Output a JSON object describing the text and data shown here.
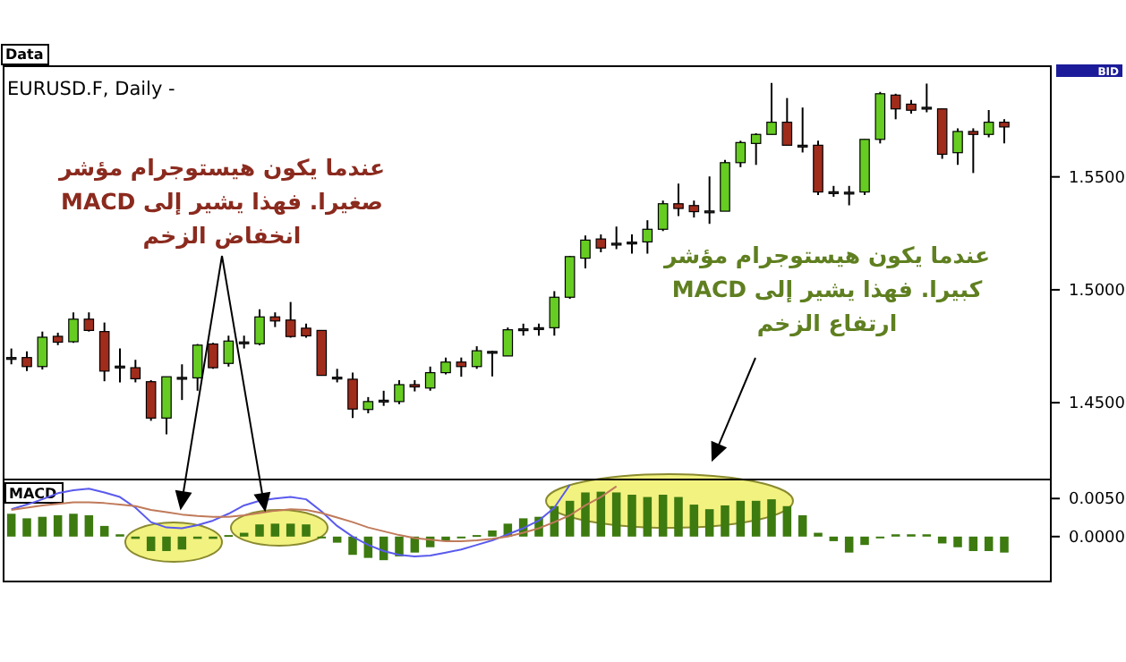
{
  "chart_data": [
    {
      "type": "candlestick",
      "title": "EURUSD.F, Daily -",
      "annotations": [
        "Data",
        "BID",
        "عندما يكون هيستوجرام مؤشر\nMACD صغيرا. فهذا يشير إلى\nانخفاض الزخم",
        "عندما يكون هيستوجرام مؤشر\nMACD كبيرا. فهذا يشير إلى\nارتفاع الزخم"
      ],
      "categories": [
        null,
        null,
        null,
        null,
        null,
        null,
        null,
        null,
        null,
        null,
        null,
        null,
        null,
        null,
        null,
        null,
        null,
        null,
        null,
        null,
        null,
        null,
        null,
        null,
        null,
        null,
        null,
        null,
        null,
        null,
        null,
        null,
        null,
        null,
        null,
        null,
        null,
        null,
        null,
        null,
        null,
        null,
        null,
        null,
        null,
        null,
        null,
        null,
        null,
        null,
        null,
        null,
        null,
        null,
        null,
        null,
        null,
        null,
        null,
        null,
        null,
        null,
        null,
        null,
        null
      ],
      "ohlc": [
        [
          1.47,
          1.474,
          1.467,
          1.47
        ],
        [
          1.47,
          1.4727,
          1.464,
          1.466
        ],
        [
          1.466,
          1.4815,
          1.4647,
          1.479
        ],
        [
          1.4794,
          1.481,
          1.4755,
          1.4768
        ],
        [
          1.477,
          1.49,
          1.4765,
          1.487
        ],
        [
          1.487,
          1.49,
          1.4815,
          1.482
        ],
        [
          1.4815,
          1.4855,
          1.4595,
          1.464
        ],
        [
          1.4662,
          1.474,
          1.459,
          1.4662
        ],
        [
          1.4655,
          1.469,
          1.459,
          1.4606
        ],
        [
          1.4593,
          1.46,
          1.442,
          1.4432
        ],
        [
          1.4432,
          1.4615,
          1.436,
          1.4615
        ],
        [
          1.4612,
          1.467,
          1.4512,
          1.4612
        ],
        [
          1.461,
          1.476,
          1.4553,
          1.4755
        ],
        [
          1.476,
          1.4765,
          1.465,
          1.4655
        ],
        [
          1.4674,
          1.4797,
          1.466,
          1.4773
        ],
        [
          1.4769,
          1.4797,
          1.474,
          1.4769
        ],
        [
          1.4761,
          1.4914,
          1.4754,
          1.488
        ],
        [
          1.488,
          1.49,
          1.4835,
          1.4862
        ],
        [
          1.4866,
          1.4946,
          1.4788,
          1.4793
        ],
        [
          1.483,
          1.485,
          1.4788,
          1.4796
        ],
        [
          1.482,
          1.482,
          1.462,
          1.4621
        ],
        [
          1.4613,
          1.465,
          1.459,
          1.4613
        ],
        [
          1.4604,
          1.4633,
          1.4432,
          1.4472
        ],
        [
          1.447,
          1.4525,
          1.4453,
          1.4505
        ],
        [
          1.4511,
          1.4553,
          1.4486,
          1.4511
        ],
        [
          1.4505,
          1.46,
          1.4494,
          1.458
        ],
        [
          1.458,
          1.46,
          1.455,
          1.457
        ],
        [
          1.4565,
          1.466,
          1.4553,
          1.4633
        ],
        [
          1.4633,
          1.47,
          1.4625,
          1.468
        ],
        [
          1.468,
          1.47,
          1.4615,
          1.466
        ],
        [
          1.466,
          1.475,
          1.465,
          1.473
        ],
        [
          1.4727,
          1.473,
          1.4617,
          1.4727
        ],
        [
          1.4707,
          1.4833,
          1.4707,
          1.4823
        ],
        [
          1.4827,
          1.485,
          1.4797,
          1.4827
        ],
        [
          1.4832,
          1.485,
          1.4797,
          1.4832
        ],
        [
          1.4832,
          1.4994,
          1.4797,
          1.4967
        ],
        [
          1.4967,
          1.515,
          1.496,
          1.5147
        ],
        [
          1.514,
          1.524,
          1.5095,
          1.522
        ],
        [
          1.5225,
          1.5245,
          1.5166,
          1.5185
        ],
        [
          1.5206,
          1.528,
          1.518,
          1.5206
        ],
        [
          1.5211,
          1.5245,
          1.516,
          1.5211
        ],
        [
          1.5212,
          1.5308,
          1.516,
          1.5268
        ],
        [
          1.5268,
          1.5395,
          1.526,
          1.5381
        ],
        [
          1.5381,
          1.547,
          1.5327,
          1.536
        ],
        [
          1.5373,
          1.5395,
          1.532,
          1.5346
        ],
        [
          1.5349,
          1.5502,
          1.5292,
          1.5349
        ],
        [
          1.5348,
          1.5575,
          1.5348,
          1.5563
        ],
        [
          1.5563,
          1.566,
          1.5543,
          1.5652
        ],
        [
          1.5648,
          1.5693,
          1.5553,
          1.5688
        ],
        [
          1.5688,
          1.5916,
          1.5688,
          1.5742
        ],
        [
          1.5742,
          1.5849,
          1.564,
          1.564
        ],
        [
          1.564,
          1.5807,
          1.5608,
          1.564
        ],
        [
          1.564,
          1.566,
          1.542,
          1.5433
        ],
        [
          1.5434,
          1.546,
          1.5412,
          1.5434
        ],
        [
          1.5432,
          1.546,
          1.5374,
          1.5432
        ],
        [
          1.5433,
          1.5666,
          1.542,
          1.5666
        ],
        [
          1.5666,
          1.5876,
          1.5648,
          1.5868
        ],
        [
          1.5862,
          1.5868,
          1.5755,
          1.5801
        ],
        [
          1.5822,
          1.584,
          1.578,
          1.5795
        ],
        [
          1.5808,
          1.5913,
          1.5786,
          1.5808
        ],
        [
          1.5801,
          1.5801,
          1.558,
          1.56
        ],
        [
          1.5607,
          1.5715,
          1.5553,
          1.5701
        ],
        [
          1.5701,
          1.5715,
          1.5517,
          1.5688
        ],
        [
          1.5688,
          1.5796,
          1.5675,
          1.5742
        ],
        [
          1.5742,
          1.5755,
          1.5648,
          1.5721
        ]
      ],
      "colors": [
        "#333333",
        "#a02c1c",
        "#66cc22",
        "#a02c1c",
        "#66cc22",
        "#a02c1c",
        "#a02c1c",
        "#333333",
        "#a02c1c",
        "#a02c1c",
        "#66cc22",
        "#333333",
        "#66cc22",
        "#a02c1c",
        "#66cc22",
        "#333333",
        "#66cc22",
        "#a02c1c",
        "#a02c1c",
        "#a02c1c",
        "#a02c1c",
        "#333333",
        "#a02c1c",
        "#66cc22",
        "#333333",
        "#66cc22",
        "#a02c1c",
        "#66cc22",
        "#66cc22",
        "#a02c1c",
        "#66cc22",
        "#333333",
        "#66cc22",
        "#333333",
        "#333333",
        "#66cc22",
        "#66cc22",
        "#66cc22",
        "#a02c1c",
        "#333333",
        "#333333",
        "#66cc22",
        "#66cc22",
        "#a02c1c",
        "#a02c1c",
        "#333333",
        "#66cc22",
        "#66cc22",
        "#66cc22",
        "#66cc22",
        "#a02c1c",
        "#333333",
        "#a02c1c",
        "#333333",
        "#333333",
        "#66cc22",
        "#66cc22",
        "#a02c1c",
        "#a02c1c",
        "#333333",
        "#a02c1c",
        "#66cc22",
        "#a02c1c",
        "#66cc22",
        "#a02c1c"
      ],
      "ylim": [
        1.416,
        1.599
      ],
      "yticks": [
        {
          "value": 1.45,
          "label": "1.4500"
        },
        {
          "value": 1.5,
          "label": "1.5000"
        },
        {
          "value": 1.55,
          "label": "1.5500"
        }
      ],
      "grid": false
    },
    {
      "type": "bar",
      "title": "MACD",
      "categories": [
        null,
        null,
        null,
        null,
        null,
        null,
        null,
        null,
        null,
        null,
        null,
        null,
        null,
        null,
        null,
        null,
        null,
        null,
        null,
        null,
        null,
        null,
        null,
        null,
        null,
        null,
        null,
        null,
        null,
        null,
        null,
        null,
        null,
        null,
        null,
        null,
        null,
        null,
        null,
        null,
        null,
        null,
        null,
        null,
        null,
        null,
        null,
        null,
        null,
        null,
        null,
        null,
        null,
        null,
        null,
        null,
        null,
        null,
        null,
        null,
        null,
        null,
        null,
        null,
        null
      ],
      "series": [
        {
          "type": "bar",
          "color": "#3d7a10",
          "values": [
            0.003,
            0.0024,
            0.0026,
            0.0028,
            0.003,
            0.0028,
            0.0014,
            0.0003,
            -0.0003,
            -0.0019,
            -0.0019,
            -0.0017,
            -0.0003,
            -0.0003,
            0.0002,
            0.0005,
            0.0016,
            0.0017,
            0.0017,
            0.0016,
            0,
            -0.0008,
            -0.0024,
            -0.0028,
            -0.0031,
            -0.0026,
            -0.0021,
            -0.0014,
            -0.0005,
            -0.0002,
            0.0002,
            0.0008,
            0.0017,
            0.0024,
            0.0026,
            0.004,
            0.0047,
            0.0058,
            0.0059,
            0.0058,
            0.0055,
            0.0052,
            0.0055,
            0.0052,
            0.0042,
            0.0036,
            0.0041,
            0.0047,
            0.0047,
            0.0049,
            0.004,
            0.0028,
            0.0005,
            -0.0006,
            -0.0021,
            -0.0011,
            0,
            0.0003,
            0.0003,
            0.0003,
            -0.0009,
            -0.0014,
            -0.0019,
            -0.0019,
            -0.0021
          ]
        },
        {
          "type": "line",
          "color": "#5a5aee",
          "values": [
            0.0036,
            0.0042,
            0.0049,
            0.0057,
            0.0061,
            0.0063,
            0.0058,
            0.0052,
            0.0038,
            0.0019,
            0.0012,
            0.0011,
            0.0015,
            0.0021,
            0.003,
            0.0041,
            0.0047,
            0.005,
            0.0052,
            0.0049,
            0.0033,
            0.0014,
            0,
            -0.0011,
            -0.0019,
            -0.0024,
            -0.0026,
            -0.0025,
            -0.0021,
            -0.0017,
            -0.0011,
            -0.0005,
            0.0003,
            0.0011,
            0.0021,
            0.0038,
            0.0068,
            null,
            null,
            null,
            null,
            null,
            null,
            null,
            null,
            null,
            null,
            null,
            null,
            null,
            null,
            null,
            null,
            null,
            null,
            null,
            null,
            null,
            null,
            null,
            null,
            null,
            null,
            null,
            null
          ]
        },
        {
          "type": "line",
          "color": "#c07a5a",
          "values": [
            0.0035,
            0.0038,
            0.0041,
            0.0043,
            0.0045,
            0.0045,
            0.0044,
            0.0042,
            0.004,
            0.0035,
            0.0032,
            0.0029,
            0.0027,
            0.0026,
            0.0026,
            0.0028,
            0.0031,
            0.0034,
            0.0036,
            0.0035,
            0.0031,
            0.0025,
            0.0019,
            0.0012,
            0.0007,
            0.0002,
            -0.0002,
            -0.0004,
            -0.0006,
            -0.0006,
            -0.0005,
            -0.0003,
            0,
            0.0005,
            0.0011,
            0.0019,
            0.0028,
            0.0041,
            0.0052,
            0.0066,
            null,
            null,
            null,
            null,
            null,
            null,
            null,
            null,
            null,
            null,
            null,
            null,
            null,
            null,
            null,
            null,
            null,
            null,
            null,
            null,
            null,
            null,
            null,
            null,
            null
          ]
        }
      ],
      "ylim": [
        -0.0059,
        0.0075
      ],
      "yticks": [
        {
          "value": 0.005,
          "label": "0.0050"
        },
        {
          "value": 0,
          "label": "0.0000"
        }
      ],
      "grid": false
    }
  ]
}
